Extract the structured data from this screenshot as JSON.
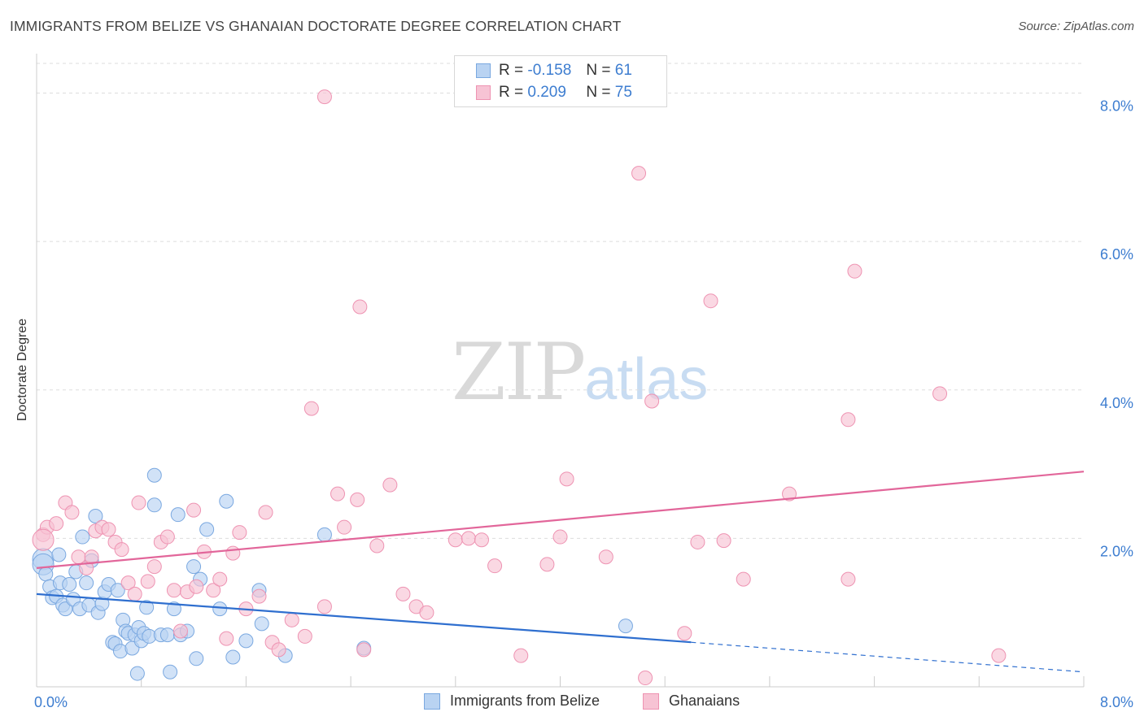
{
  "title": "IMMIGRANTS FROM BELIZE VS GHANAIAN DOCTORATE DEGREE CORRELATION CHART",
  "source": "Source: ZipAtlas.com",
  "watermark": {
    "zip": "ZIP",
    "atlas": "atlas"
  },
  "legend": {
    "r_label": "R =",
    "n_label": "N =",
    "rows": [
      {
        "r": "-0.158",
        "n": "61"
      },
      {
        "r": "0.209",
        "n": "75"
      }
    ]
  },
  "colors": {
    "blue_fill": "#b9d3f2",
    "blue_stroke": "#7aa8e0",
    "blue_line": "#2f6fcf",
    "pink_fill": "#f7c3d4",
    "pink_stroke": "#ee93b2",
    "pink_line": "#e2669a",
    "tick_text": "#3d7dd0",
    "grid": "#dddddd"
  },
  "chart_data": {
    "type": "scatter",
    "title": "IMMIGRANTS FROM BELIZE VS GHANAIAN DOCTORATE DEGREE CORRELATION CHART",
    "xlabel": "",
    "ylabel": "Doctorate Degree",
    "xlim": [
      0,
      8
    ],
    "ylim": [
      0,
      8.4
    ],
    "x_tick_labels": [
      "0.0%",
      "8.0%"
    ],
    "y_ticks": [
      {
        "value": 2,
        "label": "2.0%"
      },
      {
        "value": 4,
        "label": "4.0%"
      },
      {
        "value": 6,
        "label": "6.0%"
      },
      {
        "value": 8,
        "label": "8.0%"
      }
    ],
    "grid": "horizontal dashed",
    "legend_position": "top-center and bottom",
    "series": [
      {
        "name": "Immigrants from Belize",
        "color": "#b9d3f2",
        "trend": {
          "x": [
            0,
            5
          ],
          "y": [
            1.25,
            0.6
          ],
          "dashed_extension_to": [
            8,
            0.2
          ]
        },
        "points": [
          [
            0.05,
            1.72
          ],
          [
            0.05,
            1.65
          ],
          [
            0.07,
            1.52
          ],
          [
            0.1,
            1.35
          ],
          [
            0.12,
            1.2
          ],
          [
            0.15,
            1.22
          ],
          [
            0.17,
            1.78
          ],
          [
            0.18,
            1.4
          ],
          [
            0.2,
            1.1
          ],
          [
            0.22,
            1.05
          ],
          [
            0.25,
            1.38
          ],
          [
            0.28,
            1.18
          ],
          [
            0.3,
            1.55
          ],
          [
            0.33,
            1.05
          ],
          [
            0.35,
            2.02
          ],
          [
            0.38,
            1.4
          ],
          [
            0.4,
            1.1
          ],
          [
            0.42,
            1.7
          ],
          [
            0.45,
            2.3
          ],
          [
            0.47,
            1.0
          ],
          [
            0.5,
            1.12
          ],
          [
            0.52,
            1.28
          ],
          [
            0.55,
            1.38
          ],
          [
            0.58,
            0.6
          ],
          [
            0.6,
            0.58
          ],
          [
            0.62,
            1.3
          ],
          [
            0.64,
            0.48
          ],
          [
            0.66,
            0.9
          ],
          [
            0.68,
            0.75
          ],
          [
            0.7,
            0.72
          ],
          [
            0.73,
            0.52
          ],
          [
            0.75,
            0.7
          ],
          [
            0.77,
            0.18
          ],
          [
            0.78,
            0.8
          ],
          [
            0.8,
            0.62
          ],
          [
            0.82,
            0.72
          ],
          [
            0.84,
            1.07
          ],
          [
            0.86,
            0.68
          ],
          [
            0.9,
            2.45
          ],
          [
            0.9,
            2.85
          ],
          [
            0.95,
            0.7
          ],
          [
            1.0,
            0.7
          ],
          [
            1.02,
            0.2
          ],
          [
            1.05,
            1.05
          ],
          [
            1.08,
            2.32
          ],
          [
            1.1,
            0.7
          ],
          [
            1.15,
            0.75
          ],
          [
            1.2,
            1.62
          ],
          [
            1.22,
            0.38
          ],
          [
            1.25,
            1.45
          ],
          [
            1.3,
            2.12
          ],
          [
            1.4,
            1.05
          ],
          [
            1.45,
            2.5
          ],
          [
            1.5,
            0.4
          ],
          [
            1.6,
            0.62
          ],
          [
            1.7,
            1.3
          ],
          [
            1.72,
            0.85
          ],
          [
            1.9,
            0.42
          ],
          [
            2.2,
            2.05
          ],
          [
            2.5,
            0.52
          ],
          [
            4.5,
            0.82
          ]
        ]
      },
      {
        "name": "Ghanaians",
        "color": "#f7c3d4",
        "trend": {
          "x": [
            0,
            8
          ],
          "y": [
            1.6,
            2.9
          ]
        },
        "points": [
          [
            0.05,
            2.05
          ],
          [
            0.08,
            2.15
          ],
          [
            0.15,
            2.2
          ],
          [
            0.22,
            2.48
          ],
          [
            0.27,
            2.35
          ],
          [
            0.32,
            1.75
          ],
          [
            0.38,
            1.6
          ],
          [
            0.42,
            1.75
          ],
          [
            0.45,
            2.1
          ],
          [
            0.5,
            2.15
          ],
          [
            0.55,
            2.12
          ],
          [
            0.6,
            1.95
          ],
          [
            0.65,
            1.85
          ],
          [
            0.7,
            1.4
          ],
          [
            0.75,
            1.25
          ],
          [
            0.78,
            2.48
          ],
          [
            0.85,
            1.42
          ],
          [
            0.9,
            1.62
          ],
          [
            0.95,
            1.95
          ],
          [
            1.0,
            2.02
          ],
          [
            1.05,
            1.3
          ],
          [
            1.1,
            0.75
          ],
          [
            1.15,
            1.28
          ],
          [
            1.2,
            2.38
          ],
          [
            1.22,
            1.35
          ],
          [
            1.28,
            1.82
          ],
          [
            1.35,
            1.3
          ],
          [
            1.4,
            1.45
          ],
          [
            1.45,
            0.65
          ],
          [
            1.5,
            1.8
          ],
          [
            1.55,
            2.08
          ],
          [
            1.6,
            1.05
          ],
          [
            1.7,
            1.22
          ],
          [
            1.75,
            2.35
          ],
          [
            1.8,
            0.6
          ],
          [
            1.85,
            0.5
          ],
          [
            1.95,
            0.9
          ],
          [
            2.05,
            0.68
          ],
          [
            2.1,
            3.75
          ],
          [
            2.2,
            1.08
          ],
          [
            2.3,
            2.6
          ],
          [
            2.35,
            2.15
          ],
          [
            2.45,
            2.52
          ],
          [
            2.5,
            0.5
          ],
          [
            2.6,
            1.9
          ],
          [
            2.7,
            2.72
          ],
          [
            2.8,
            1.25
          ],
          [
            2.9,
            1.08
          ],
          [
            2.98,
            1.0
          ],
          [
            3.2,
            1.98
          ],
          [
            3.3,
            2.0
          ],
          [
            3.4,
            1.98
          ],
          [
            3.5,
            1.63
          ],
          [
            3.7,
            0.42
          ],
          [
            3.9,
            1.65
          ],
          [
            4.0,
            2.02
          ],
          [
            4.05,
            2.8
          ],
          [
            4.35,
            1.75
          ],
          [
            4.6,
            6.92
          ],
          [
            4.65,
            0.12
          ],
          [
            4.7,
            3.85
          ],
          [
            4.95,
            0.72
          ],
          [
            5.05,
            1.95
          ],
          [
            5.15,
            5.2
          ],
          [
            5.25,
            1.97
          ],
          [
            5.4,
            1.45
          ],
          [
            5.75,
            2.6
          ],
          [
            6.2,
            1.45
          ],
          [
            6.2,
            3.6
          ],
          [
            6.25,
            5.6
          ],
          [
            6.9,
            3.95
          ],
          [
            7.35,
            0.42
          ],
          [
            2.47,
            5.12
          ],
          [
            2.2,
            7.95
          ],
          [
            0.05,
            1.98
          ]
        ]
      }
    ]
  },
  "bottom_legend": [
    "Immigrants from Belize",
    "Ghanaians"
  ]
}
